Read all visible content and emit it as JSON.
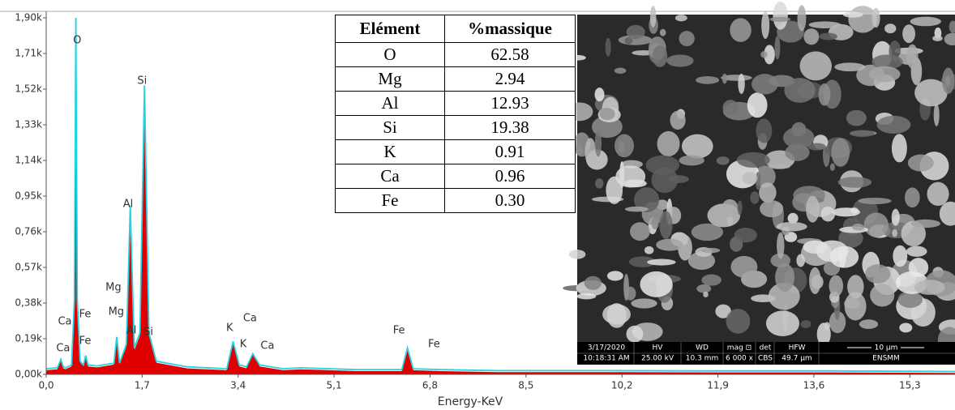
{
  "chart_data": {
    "type": "spectrum",
    "x_label": "Energy-KeV",
    "xlim": [
      0,
      16.1
    ],
    "ylim": [
      0,
      1900
    ],
    "xticks": [
      {
        "value": 0,
        "label": "0,0"
      },
      {
        "value": 1.7,
        "label": "1,7"
      },
      {
        "value": 3.4,
        "label": "3,4"
      },
      {
        "value": 5.1,
        "label": "5,1"
      },
      {
        "value": 6.8,
        "label": "6,8"
      },
      {
        "value": 8.5,
        "label": "8,5"
      },
      {
        "value": 10.2,
        "label": "10,2"
      },
      {
        "value": 11.9,
        "label": "11,9"
      },
      {
        "value": 13.6,
        "label": "13,6"
      },
      {
        "value": 15.3,
        "label": "15,3"
      }
    ],
    "yticks": [
      {
        "value": 0,
        "label": "0,00k"
      },
      {
        "value": 190,
        "label": "0,19k"
      },
      {
        "value": 380,
        "label": "0,38k"
      },
      {
        "value": 570,
        "label": "0,57k"
      },
      {
        "value": 760,
        "label": "0,76k"
      },
      {
        "value": 950,
        "label": "0,95k"
      },
      {
        "value": 1140,
        "label": "1,14k"
      },
      {
        "value": 1330,
        "label": "1,33k"
      },
      {
        "value": 1520,
        "label": "1,52k"
      },
      {
        "value": 1710,
        "label": "1,71k"
      },
      {
        "value": 1900,
        "label": "1,90k"
      }
    ],
    "x": [
      0.0,
      0.2,
      0.26,
      0.3,
      0.34,
      0.45,
      0.5,
      0.525,
      0.55,
      0.6,
      0.66,
      0.7,
      0.74,
      0.9,
      1.2,
      1.25,
      1.3,
      1.42,
      1.49,
      1.56,
      1.66,
      1.74,
      1.82,
      1.95,
      2.5,
      3.2,
      3.31,
      3.42,
      3.55,
      3.66,
      3.78,
      4.2,
      4.5,
      5.5,
      6.3,
      6.4,
      6.5,
      7.0,
      8,
      10,
      12,
      14,
      16.1
    ],
    "series": [
      {
        "style": "area",
        "color": "#e00000",
        "values": [
          20,
          25,
          70,
          30,
          25,
          40,
          300,
          1720,
          300,
          60,
          40,
          90,
          40,
          35,
          50,
          170,
          50,
          140,
          860,
          120,
          200,
          1480,
          200,
          60,
          30,
          20,
          160,
          40,
          30,
          100,
          40,
          20,
          25,
          15,
          15,
          120,
          20,
          15,
          10,
          10,
          8,
          8,
          5
        ]
      },
      {
        "style": "line",
        "color": "#22d3e0",
        "values": [
          30,
          35,
          80,
          40,
          35,
          50,
          400,
          1900,
          400,
          70,
          50,
          100,
          50,
          45,
          60,
          200,
          60,
          160,
          900,
          140,
          220,
          1540,
          220,
          70,
          40,
          30,
          175,
          50,
          40,
          110,
          50,
          30,
          35,
          25,
          25,
          140,
          30,
          25,
          20,
          20,
          18,
          18,
          15
        ]
      }
    ],
    "annotations": [
      {
        "label": "O",
        "x": 0.55,
        "y": 1779
      },
      {
        "label": "Si",
        "x": 1.7,
        "y": 1563
      },
      {
        "label": "Al",
        "x": 1.45,
        "y": 907
      },
      {
        "label": "Mg",
        "x": 1.19,
        "y": 462
      },
      {
        "label": "Mg",
        "x": 1.24,
        "y": 332
      },
      {
        "label": "Ca",
        "x": 0.33,
        "y": 281
      },
      {
        "label": "Fe",
        "x": 0.69,
        "y": 320
      },
      {
        "label": "Ca",
        "x": 0.3,
        "y": 138
      },
      {
        "label": "Fe",
        "x": 0.69,
        "y": 177
      },
      {
        "label": "Al",
        "x": 1.51,
        "y": 233
      },
      {
        "label": "Si",
        "x": 1.81,
        "y": 225
      },
      {
        "label": "K",
        "x": 3.25,
        "y": 246
      },
      {
        "label": "K",
        "x": 3.49,
        "y": 160
      },
      {
        "label": "Ca",
        "x": 3.61,
        "y": 298
      },
      {
        "label": "Ca",
        "x": 3.92,
        "y": 151
      },
      {
        "label": "Fe",
        "x": 6.25,
        "y": 233
      },
      {
        "label": "Fe",
        "x": 6.87,
        "y": 160
      }
    ]
  },
  "table": {
    "header": [
      "Elément",
      "%massique"
    ],
    "rows": [
      [
        "O",
        "62.58"
      ],
      [
        "Mg",
        "2.94"
      ],
      [
        "Al",
        "12.93"
      ],
      [
        "Si",
        "19.38"
      ],
      [
        "K",
        "0.91"
      ],
      [
        "Ca",
        "0.96"
      ],
      [
        "Fe",
        "0.30"
      ]
    ]
  },
  "sem_info": {
    "date": "3/17/2020",
    "time": "10:18:31 AM",
    "hv_label": "HV",
    "hv": "25.00 kV",
    "wd_label": "WD",
    "wd": "10.3 mm",
    "mag_label": "mag ⊡",
    "mag": "6 000 x",
    "det_label": "det",
    "det": "CBS",
    "hfw_label": "HFW",
    "hfw": "49.7 µm",
    "scale": "10 µm",
    "lab": "ENSMM"
  }
}
